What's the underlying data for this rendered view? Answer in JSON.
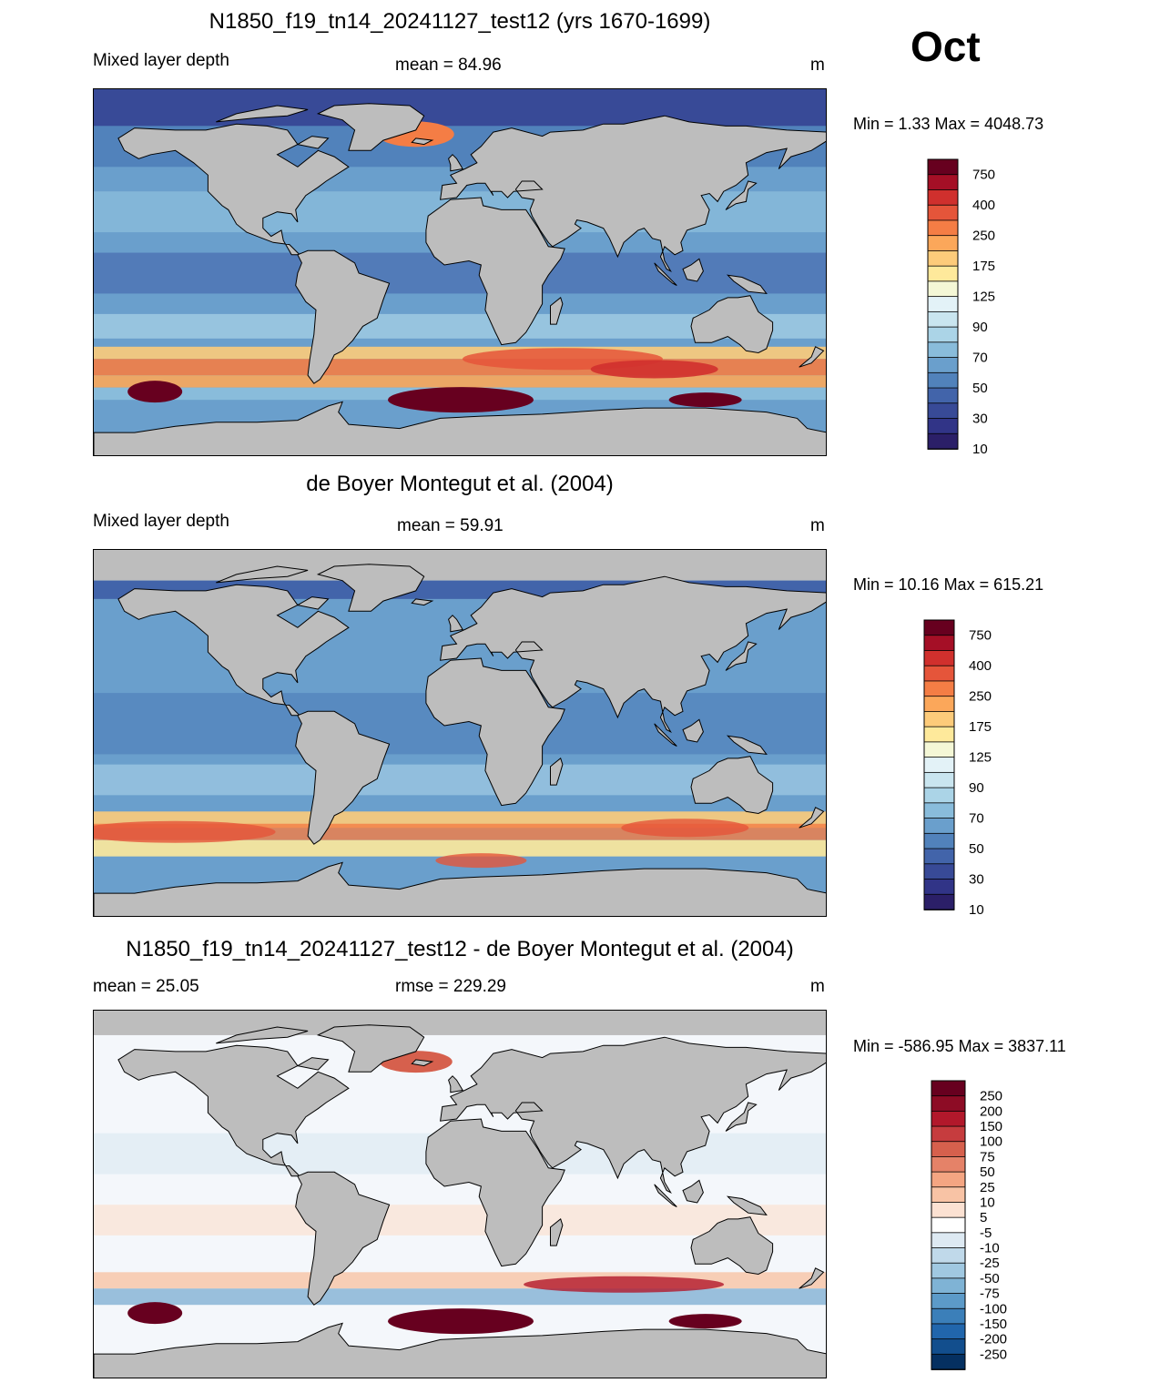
{
  "month": "Oct",
  "panels": [
    {
      "title": "N1850_f19_tn14_20241127_test12 (yrs 1670-1699)",
      "left_label": "Mixed layer depth",
      "center_label": "mean =  84.96",
      "units": "m",
      "minmax": "Min =   1.33 Max = 4048.73",
      "kind": "model"
    },
    {
      "title": "de Boyer Montegut et al. (2004)",
      "left_label": "Mixed layer depth",
      "center_label": "mean =  59.91",
      "units": "m",
      "minmax": "Min =  10.16 Max = 615.21",
      "kind": "obs"
    },
    {
      "title": "N1850_f19_tn14_20241127_test12 - de Boyer Montegut et al. (2004)",
      "left_label": "mean =  25.05",
      "center_label": "rmse = 229.29",
      "units": "m",
      "minmax": "Min = -586.95 Max = 3837.11",
      "kind": "diff"
    }
  ],
  "colorbar_mld": {
    "labels": [
      "750",
      "400",
      "250",
      "175",
      "125",
      "90",
      "70",
      "50",
      "30",
      "10"
    ],
    "colors": [
      "#67001f",
      "#a50f26",
      "#d0302d",
      "#e5553a",
      "#f47d45",
      "#fba75a",
      "#fdcb7a",
      "#fee99b",
      "#f4f7d6",
      "#e3f2f7",
      "#c9e5ef",
      "#abd4e7",
      "#89bcdb",
      "#6a9fcc",
      "#5182bb",
      "#4264aa",
      "#384a97",
      "#313487",
      "#2b1f68"
    ]
  },
  "colorbar_diff": {
    "labels": [
      "250",
      "200",
      "150",
      "100",
      "75",
      "50",
      "25",
      "10",
      "5",
      "-5",
      "-10",
      "-25",
      "-50",
      "-75",
      "-100",
      "-150",
      "-200",
      "-250"
    ],
    "colors": [
      "#67001f",
      "#8d0c25",
      "#b2182b",
      "#c63c3e",
      "#d6604d",
      "#e58268",
      "#f4a582",
      "#f8c3a5",
      "#fbe1d2",
      "#ffffff",
      "#dde9f2",
      "#c0d9ea",
      "#a0c8e1",
      "#7fb3d5",
      "#5c9ac8",
      "#3b7fb9",
      "#2166ac",
      "#124e8d",
      "#053061"
    ]
  }
}
